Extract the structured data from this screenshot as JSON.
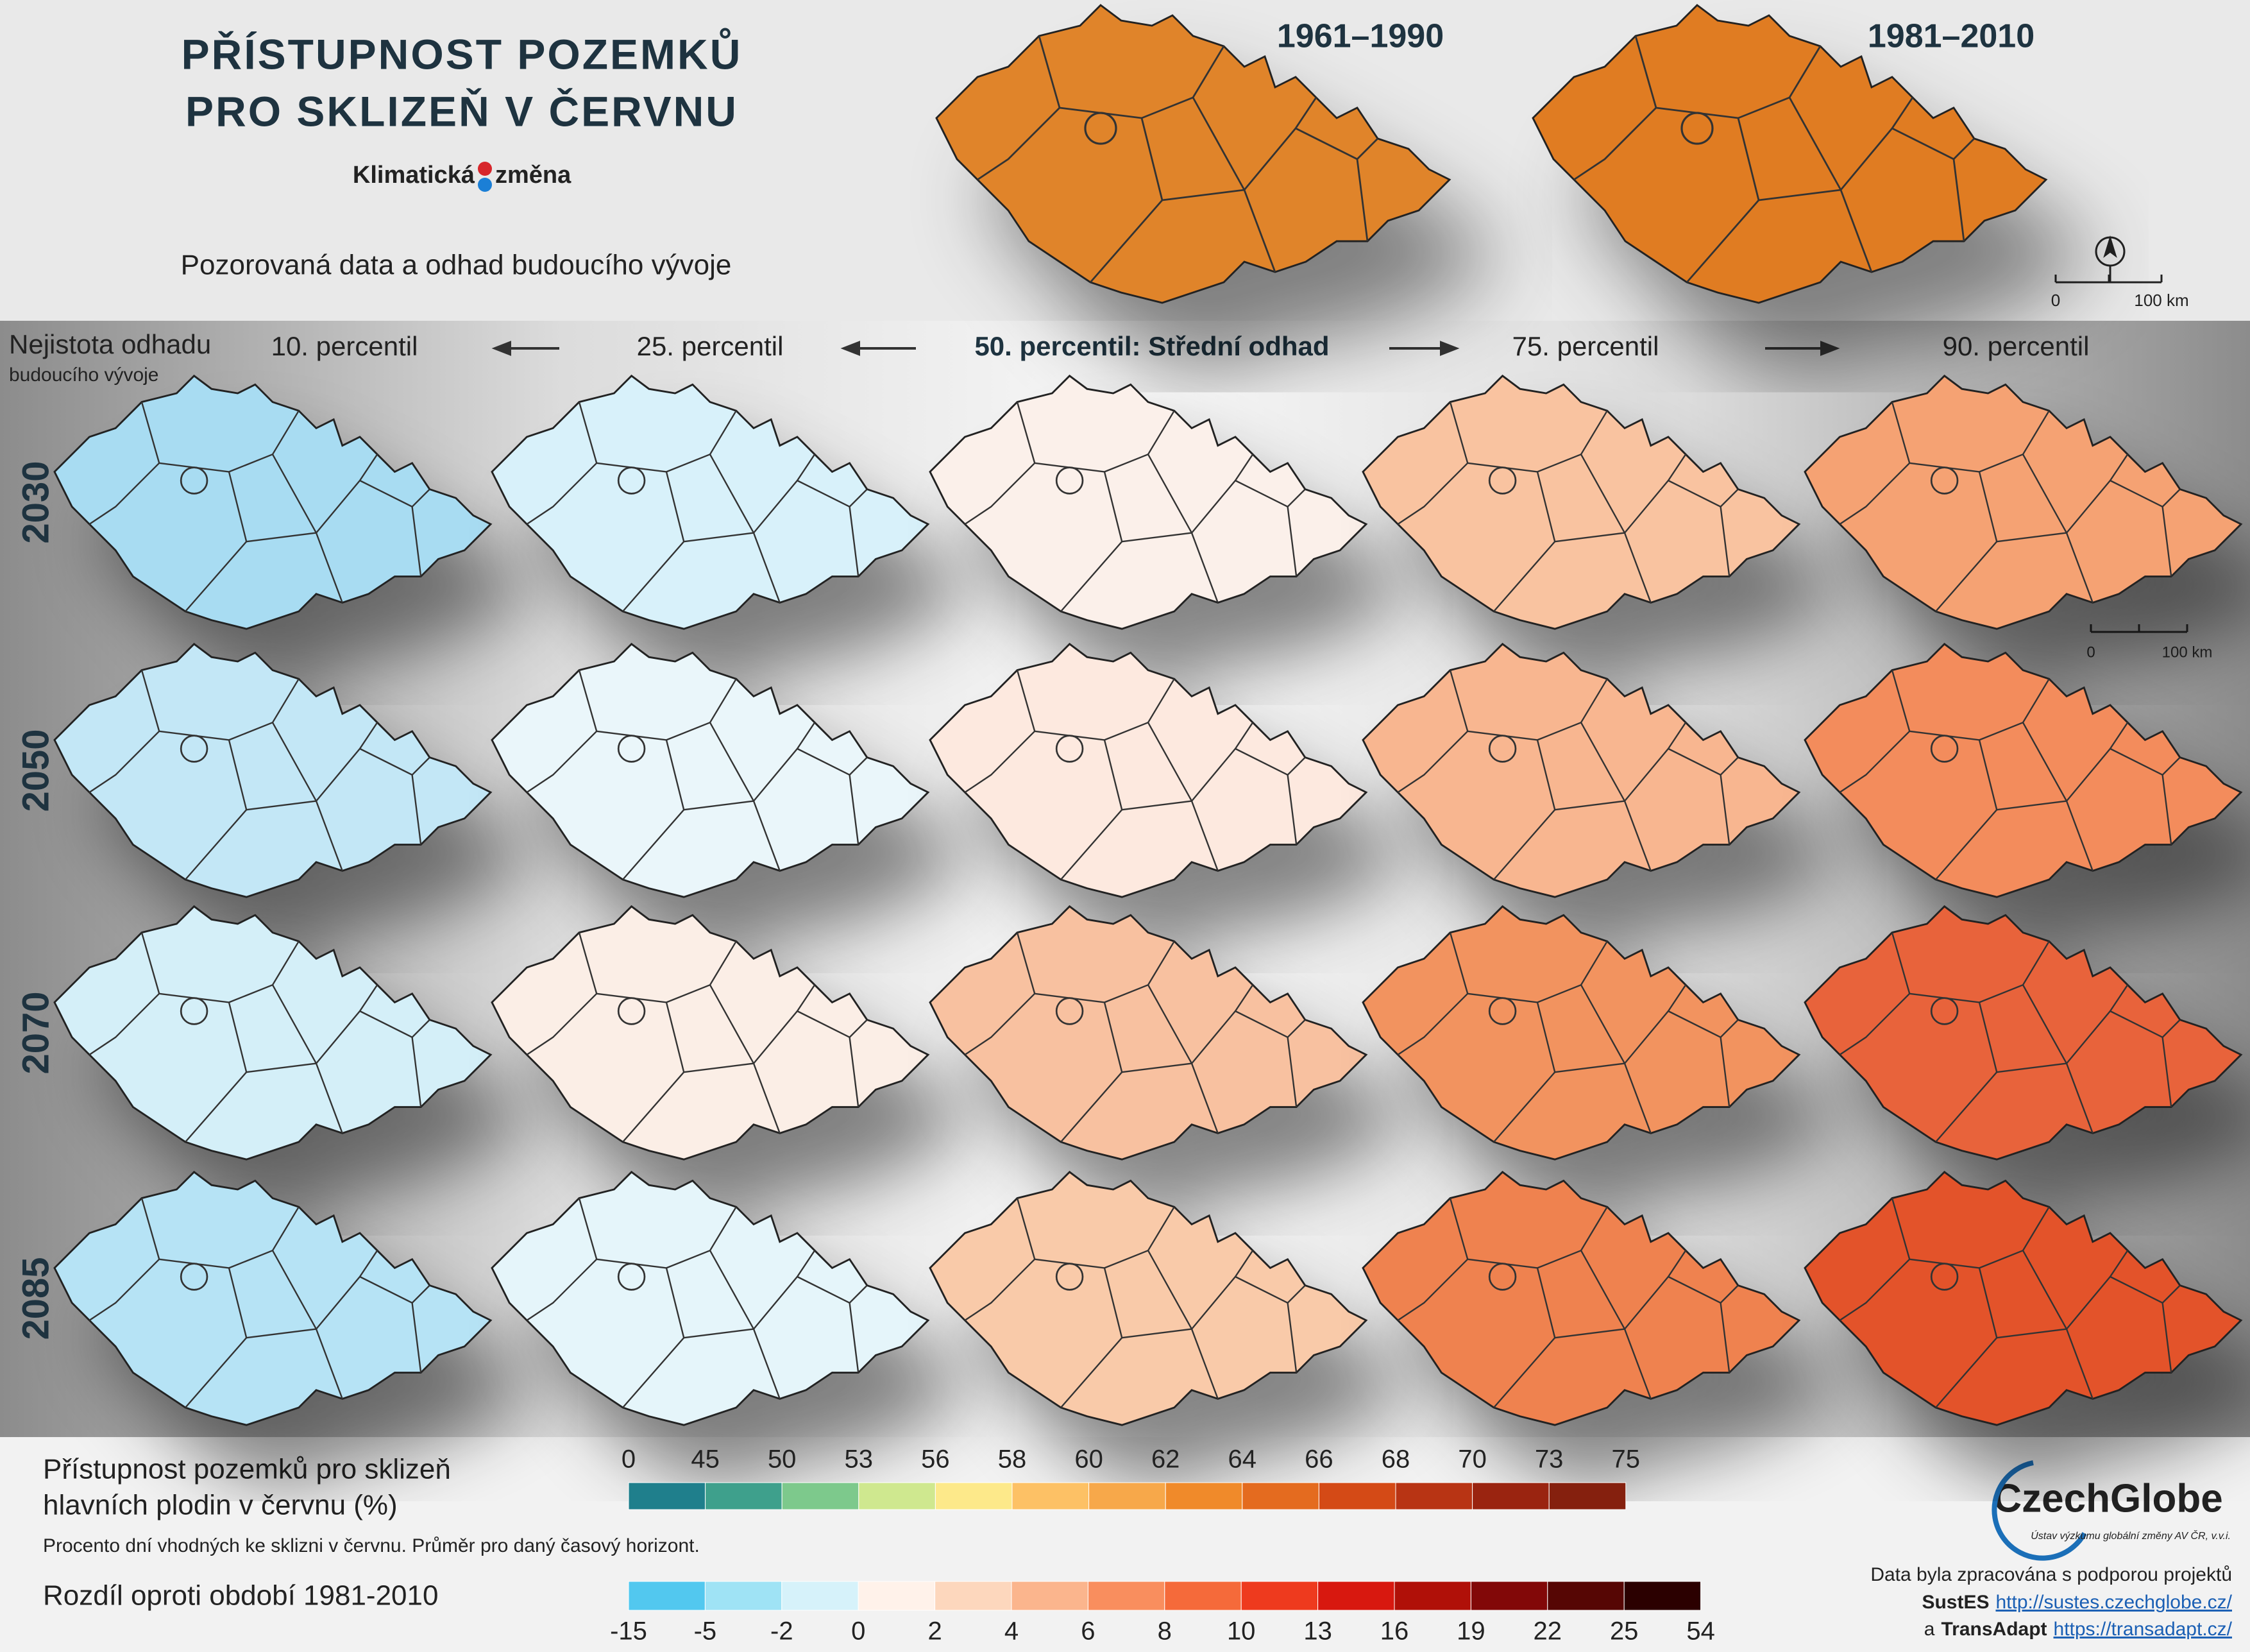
{
  "header": {
    "title_lines": [
      "PŘÍSTUPNOST POZEMKŮ",
      "PRO SKLIZEŇ V ČERVNU"
    ],
    "brand": [
      "Klimatická",
      "změna"
    ],
    "subtitle": "Pozorovaná data a odhad budoucího vývoje"
  },
  "reference_maps": [
    {
      "period": "1961–1990",
      "color": "#e0842c"
    },
    {
      "period": "1981–2010",
      "color": "#e07c24"
    }
  ],
  "scale_bar": {
    "labels": [
      "0",
      "100 km"
    ]
  },
  "uncertainty": {
    "title": "Nejistota odhadu",
    "subtitle": "budoucího vývoje"
  },
  "percentiles": [
    "10. percentil",
    "25. percentil",
    "50. percentil: Střední odhad",
    "75. percentil",
    "90. percentil"
  ],
  "rows": [
    {
      "year": 2030,
      "colors": [
        "#a8dcf2",
        "#d8f1fa",
        "#fbf0ea",
        "#f9c3a0",
        "#f5a273"
      ]
    },
    {
      "year": 2050,
      "colors": [
        "#c3e7f6",
        "#eaf6fa",
        "#fde9df",
        "#f8b690",
        "#f38c5c"
      ]
    },
    {
      "year": 2070,
      "colors": [
        "#d4eff8",
        "#fbeee6",
        "#f8c1a0",
        "#f2935f",
        "#e8643a"
      ]
    },
    {
      "year": 2085,
      "colors": [
        "#b6e3f5",
        "#e5f5fa",
        "#f9caa9",
        "#ef8250",
        "#e3532b"
      ]
    }
  ],
  "legend_absolute": {
    "title_lines": [
      "Přístupnost pozemků pro sklizeň",
      "hlavních plodin v červnu (%)"
    ],
    "note": "Procento dní vhodných ke sklizni v červnu. Průměr pro daný časový horizont.",
    "ticks": [
      0,
      45,
      50,
      53,
      56,
      58,
      60,
      62,
      64,
      66,
      68,
      70,
      73,
      75
    ],
    "colors": [
      "#1f7f8c",
      "#3ea08c",
      "#7dc98c",
      "#cfe88f",
      "#fde98a",
      "#fdc165",
      "#f7a84a",
      "#f08a2a",
      "#e46b1f",
      "#d44a16",
      "#b83414",
      "#9a2410",
      "#85200e"
    ]
  },
  "legend_difference": {
    "title": "Rozdíl oproti období 1981-2010",
    "ticks": [
      -15,
      -5,
      -2,
      0,
      2,
      4,
      6,
      8,
      10,
      13,
      16,
      19,
      22,
      25,
      54
    ],
    "colors": [
      "#52c8ef",
      "#9fe3f5",
      "#d6f2fa",
      "#fff2ea",
      "#fdd7bd",
      "#fbb58d",
      "#f98e5e",
      "#f56a3a",
      "#ee3a1e",
      "#d8180f",
      "#b01008",
      "#820808",
      "#560604",
      "#2b0000"
    ]
  },
  "logo": {
    "name": [
      "Czech",
      "Globe"
    ],
    "subtitle": "Ústav výzkumu globální změny AV ČR, v.v.i."
  },
  "credits": {
    "intro": "Data byla zpracována s podporou projektů",
    "projects": [
      {
        "name": "SustES",
        "url": "http://sustes.czechglobe.cz/"
      },
      {
        "prefix": "a",
        "name": "TransAdapt",
        "url": "https://transadapt.cz/"
      }
    ]
  }
}
